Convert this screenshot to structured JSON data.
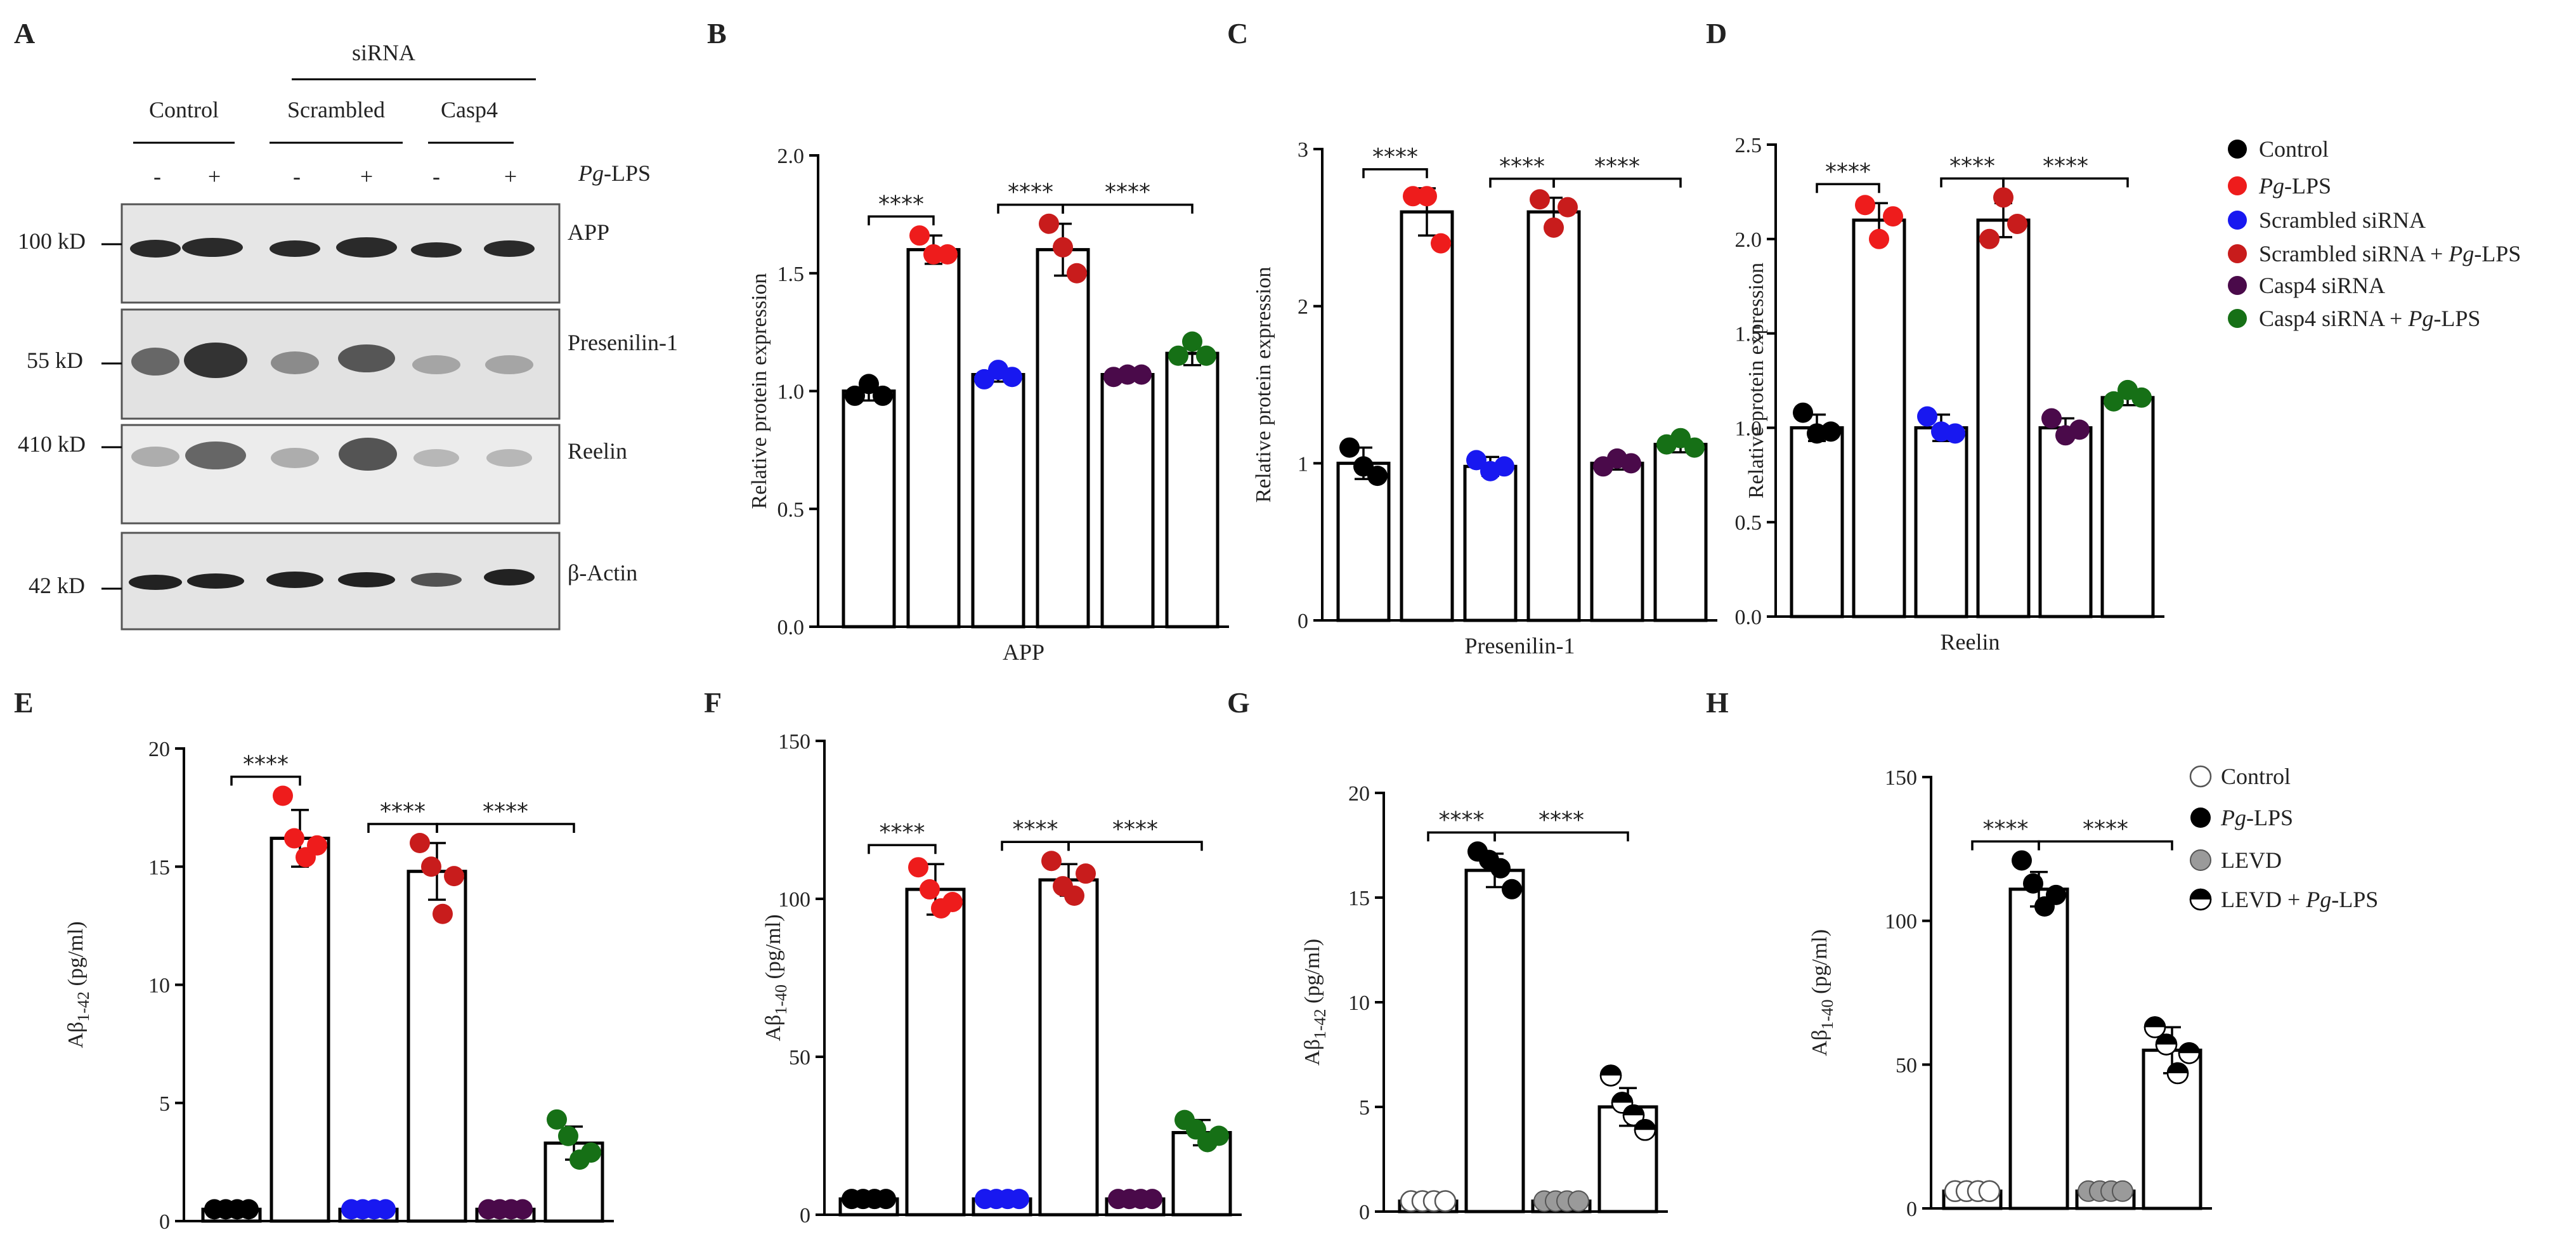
{
  "colors": {
    "Control": "#000000",
    "PgLPS": "#ee1c1c",
    "Scrambled": "#1818f0",
    "ScrambledPg": "#c81c1c",
    "Casp4": "#4a0a4a",
    "Casp4Pg": "#167016",
    "hControl": "#ffffff",
    "hPgLPS": "#000000",
    "hLEVD": "#9a9a9a",
    "hLEVDPg": "half"
  },
  "panelA": {
    "label": "A",
    "group_label": "siRNA",
    "col_labels": [
      "Control",
      "Scrambled",
      "Casp4"
    ],
    "treatment_label": "Pg-LPS",
    "treatment_italic": "Pg",
    "treatment_rest": "-LPS",
    "signs": [
      "-",
      "+",
      "-",
      "+",
      "-",
      "+"
    ],
    "blots": [
      {
        "mw": "100 kD",
        "name": "APP"
      },
      {
        "mw": "55 kD",
        "name": "Presenilin-1"
      },
      {
        "mw": "410 kD",
        "name": "Reelin"
      },
      {
        "mw": "42 kD",
        "name": "β-Actin"
      }
    ]
  },
  "legend_top": [
    {
      "key": "Control",
      "text": "Control"
    },
    {
      "key": "PgLPS",
      "italic": "Pg",
      "text": "-LPS"
    },
    {
      "key": "Scrambled",
      "text": "Scrambled siRNA"
    },
    {
      "key": "ScrambledPg",
      "text": "Scrambled siRNA + ",
      "italic2": "Pg",
      "text2": "-LPS"
    },
    {
      "key": "Casp4",
      "text": "Casp4 siRNA"
    },
    {
      "key": "Casp4Pg",
      "text": "Casp4 siRNA + ",
      "italic2": "Pg",
      "text2": "-LPS"
    }
  ],
  "legend_bottom": [
    {
      "key": "hControl",
      "text": "Control"
    },
    {
      "key": "hPgLPS",
      "italic": "Pg",
      "text": "-LPS"
    },
    {
      "key": "hLEVD",
      "text": "LEVD"
    },
    {
      "key": "hLEVDPg",
      "text": "LEVD + ",
      "italic2": "Pg",
      "text2": "-LPS"
    }
  ],
  "chart_data": [
    {
      "label": "B",
      "type": "bar",
      "title": "",
      "xlabel": "APP",
      "ylabel": "Relative protein expression",
      "ylim": [
        0,
        2.0
      ],
      "yticks": [
        "0.0",
        "0.5",
        "1.0",
        "1.5",
        "2.0"
      ],
      "ytickvals": [
        0,
        0.5,
        1.0,
        1.5,
        2.0
      ],
      "groups": [
        "Control",
        "PgLPS",
        "Scrambled",
        "ScrambledPg",
        "Casp4",
        "Casp4Pg"
      ],
      "values": [
        1.0,
        1.6,
        1.07,
        1.6,
        1.07,
        1.16
      ],
      "errors": [
        0.04,
        0.06,
        0.03,
        0.11,
        0.02,
        0.05
      ],
      "points": [
        [
          0.98,
          1.03,
          0.98
        ],
        [
          1.66,
          1.58,
          1.58
        ],
        [
          1.05,
          1.09,
          1.06
        ],
        [
          1.71,
          1.61,
          1.5
        ],
        [
          1.06,
          1.07,
          1.07
        ],
        [
          1.15,
          1.21,
          1.15
        ]
      ],
      "sig": [
        {
          "from": 0,
          "to": 1,
          "text": "****"
        },
        {
          "from": 2,
          "to": 3,
          "text": "****"
        },
        {
          "from": 3,
          "to": 5,
          "text": "****"
        }
      ]
    },
    {
      "label": "C",
      "type": "bar",
      "title": "",
      "xlabel": "Presenilin-1",
      "ylabel": "Relative protein expression",
      "ylim": [
        0,
        3
      ],
      "yticks": [
        "0",
        "1",
        "2",
        "3"
      ],
      "ytickvals": [
        0,
        1,
        2,
        3
      ],
      "groups": [
        "Control",
        "PgLPS",
        "Scrambled",
        "ScrambledPg",
        "Casp4",
        "Casp4Pg"
      ],
      "values": [
        1.0,
        2.6,
        0.98,
        2.6,
        1.0,
        1.12
      ],
      "errors": [
        0.1,
        0.15,
        0.06,
        0.09,
        0.04,
        0.05
      ],
      "points": [
        [
          1.1,
          0.98,
          0.92
        ],
        [
          2.7,
          2.7,
          2.4
        ],
        [
          1.02,
          0.95,
          0.98
        ],
        [
          2.68,
          2.5,
          2.63
        ],
        [
          0.98,
          1.03,
          1.0
        ],
        [
          1.12,
          1.16,
          1.1
        ]
      ],
      "sig": [
        {
          "from": 0,
          "to": 1,
          "text": "****"
        },
        {
          "from": 2,
          "to": 3,
          "text": "****"
        },
        {
          "from": 3,
          "to": 5,
          "text": "****"
        }
      ]
    },
    {
      "label": "D",
      "type": "bar",
      "title": "",
      "xlabel": "Reelin",
      "ylabel": "Relative protein expression",
      "ylim": [
        0,
        2.5
      ],
      "yticks": [
        "0.0",
        "0.5",
        "1.0",
        "1.5",
        "2.0",
        "2.5"
      ],
      "ytickvals": [
        0,
        0.5,
        1.0,
        1.5,
        2.0,
        2.5
      ],
      "groups": [
        "Control",
        "PgLPS",
        "Scrambled",
        "ScrambledPg",
        "Casp4",
        "Casp4Pg"
      ],
      "values": [
        1.0,
        2.1,
        1.0,
        2.1,
        1.0,
        1.16
      ],
      "errors": [
        0.07,
        0.09,
        0.07,
        0.09,
        0.05,
        0.04
      ],
      "points": [
        [
          1.08,
          0.97,
          0.98
        ],
        [
          2.18,
          2.0,
          2.12
        ],
        [
          1.06,
          0.98,
          0.97
        ],
        [
          2.0,
          2.22,
          2.08
        ],
        [
          1.05,
          0.96,
          0.99
        ],
        [
          1.14,
          1.2,
          1.16
        ]
      ],
      "sig": [
        {
          "from": 0,
          "to": 1,
          "text": "****"
        },
        {
          "from": 2,
          "to": 3,
          "text": "****"
        },
        {
          "from": 3,
          "to": 5,
          "text": "****"
        }
      ]
    },
    {
      "label": "E",
      "type": "bar",
      "title": "",
      "xlabel": "",
      "ylabel": "Aβ1-42 (pg/ml)",
      "ylabel_main": "Aβ",
      "ylabel_sub": "1-42",
      "ylabel_unit": " (pg/ml)",
      "ylim": [
        0,
        20
      ],
      "yticks": [
        "0",
        "5",
        "10",
        "15",
        "20"
      ],
      "ytickvals": [
        0,
        5,
        10,
        15,
        20
      ],
      "groups": [
        "Control",
        "PgLPS",
        "Scrambled",
        "ScrambledPg",
        "Casp4",
        "Casp4Pg"
      ],
      "values": [
        0.5,
        16.2,
        0.5,
        14.8,
        0.5,
        3.3
      ],
      "errors": [
        0.05,
        1.2,
        0.05,
        1.2,
        0.05,
        0.7
      ],
      "points": [
        [
          0.5,
          0.5,
          0.5,
          0.5
        ],
        [
          18.0,
          16.2,
          15.4,
          15.9
        ],
        [
          0.5,
          0.5,
          0.5,
          0.5
        ],
        [
          16.0,
          15.0,
          13.0,
          14.6
        ],
        [
          0.5,
          0.5,
          0.5,
          0.5
        ],
        [
          4.3,
          3.6,
          2.6,
          2.9
        ]
      ],
      "sig": [
        {
          "from": 0,
          "to": 1,
          "text": "****"
        },
        {
          "from": 2,
          "to": 3,
          "text": "****"
        },
        {
          "from": 3,
          "to": 5,
          "text": "****"
        }
      ]
    },
    {
      "label": "F",
      "type": "bar",
      "title": "",
      "xlabel": "",
      "ylabel": "Aβ1-40 (pg/ml)",
      "ylabel_main": "Aβ",
      "ylabel_sub": "1-40",
      "ylabel_unit": " (pg/ml)",
      "ylim": [
        0,
        150
      ],
      "yticks": [
        "0",
        "50",
        "100",
        "150"
      ],
      "ytickvals": [
        0,
        50,
        100,
        150
      ],
      "groups": [
        "Control",
        "PgLPS",
        "Scrambled",
        "ScrambledPg",
        "Casp4",
        "Casp4Pg"
      ],
      "values": [
        5,
        103,
        5,
        106,
        5,
        26
      ],
      "errors": [
        0.5,
        8,
        0.5,
        5,
        0.5,
        4
      ],
      "points": [
        [
          5,
          5,
          5,
          5
        ],
        [
          110,
          103,
          97,
          99
        ],
        [
          5,
          5,
          5,
          5
        ],
        [
          112,
          104,
          101,
          108
        ],
        [
          5,
          5,
          5,
          5
        ],
        [
          30,
          27,
          23,
          25
        ]
      ],
      "sig": [
        {
          "from": 0,
          "to": 1,
          "text": "****"
        },
        {
          "from": 2,
          "to": 3,
          "text": "****"
        },
        {
          "from": 3,
          "to": 5,
          "text": "****"
        }
      ]
    },
    {
      "label": "G",
      "type": "bar",
      "title": "",
      "xlabel": "",
      "ylabel": "Aβ1-42 (pg/ml)",
      "ylabel_main": "Aβ",
      "ylabel_sub": "1-42",
      "ylabel_unit": " (pg/ml)",
      "ylim": [
        0,
        20
      ],
      "yticks": [
        "0",
        "5",
        "10",
        "15",
        "20"
      ],
      "ytickvals": [
        0,
        5,
        10,
        15,
        20
      ],
      "groups": [
        "hControl",
        "hPgLPS",
        "hLEVD",
        "hLEVDPg"
      ],
      "values": [
        0.5,
        16.3,
        0.5,
        5.0
      ],
      "errors": [
        0.05,
        0.8,
        0.05,
        0.9
      ],
      "points": [
        [
          0.5,
          0.5,
          0.5,
          0.5
        ],
        [
          17.2,
          16.8,
          16.4,
          15.4
        ],
        [
          0.5,
          0.5,
          0.5,
          0.5
        ],
        [
          6.5,
          5.2,
          4.6,
          3.9
        ]
      ],
      "sig": [
        {
          "from": 0,
          "to": 1,
          "text": "****"
        },
        {
          "from": 1,
          "to": 3,
          "text": "****"
        }
      ]
    },
    {
      "label": "H",
      "type": "bar",
      "title": "",
      "xlabel": "",
      "ylabel": "Aβ1-40 (pg/ml)",
      "ylabel_main": "Aβ",
      "ylabel_sub": "1-40",
      "ylabel_unit": " (pg/ml)",
      "ylim": [
        0,
        150
      ],
      "yticks": [
        "0",
        "50",
        "100",
        "150"
      ],
      "ytickvals": [
        0,
        50,
        100,
        150
      ],
      "groups": [
        "hControl",
        "hPgLPS",
        "hLEVD",
        "hLEVDPg"
      ],
      "values": [
        6,
        111,
        6,
        55
      ],
      "errors": [
        0.5,
        6,
        0.5,
        8
      ],
      "points": [
        [
          6,
          6,
          6,
          6
        ],
        [
          121,
          113,
          105,
          109
        ],
        [
          6,
          6,
          6,
          6
        ],
        [
          63,
          57,
          47,
          54
        ]
      ],
      "sig": [
        {
          "from": 0,
          "to": 1,
          "text": "****"
        },
        {
          "from": 1,
          "to": 3,
          "text": "****"
        }
      ]
    }
  ]
}
